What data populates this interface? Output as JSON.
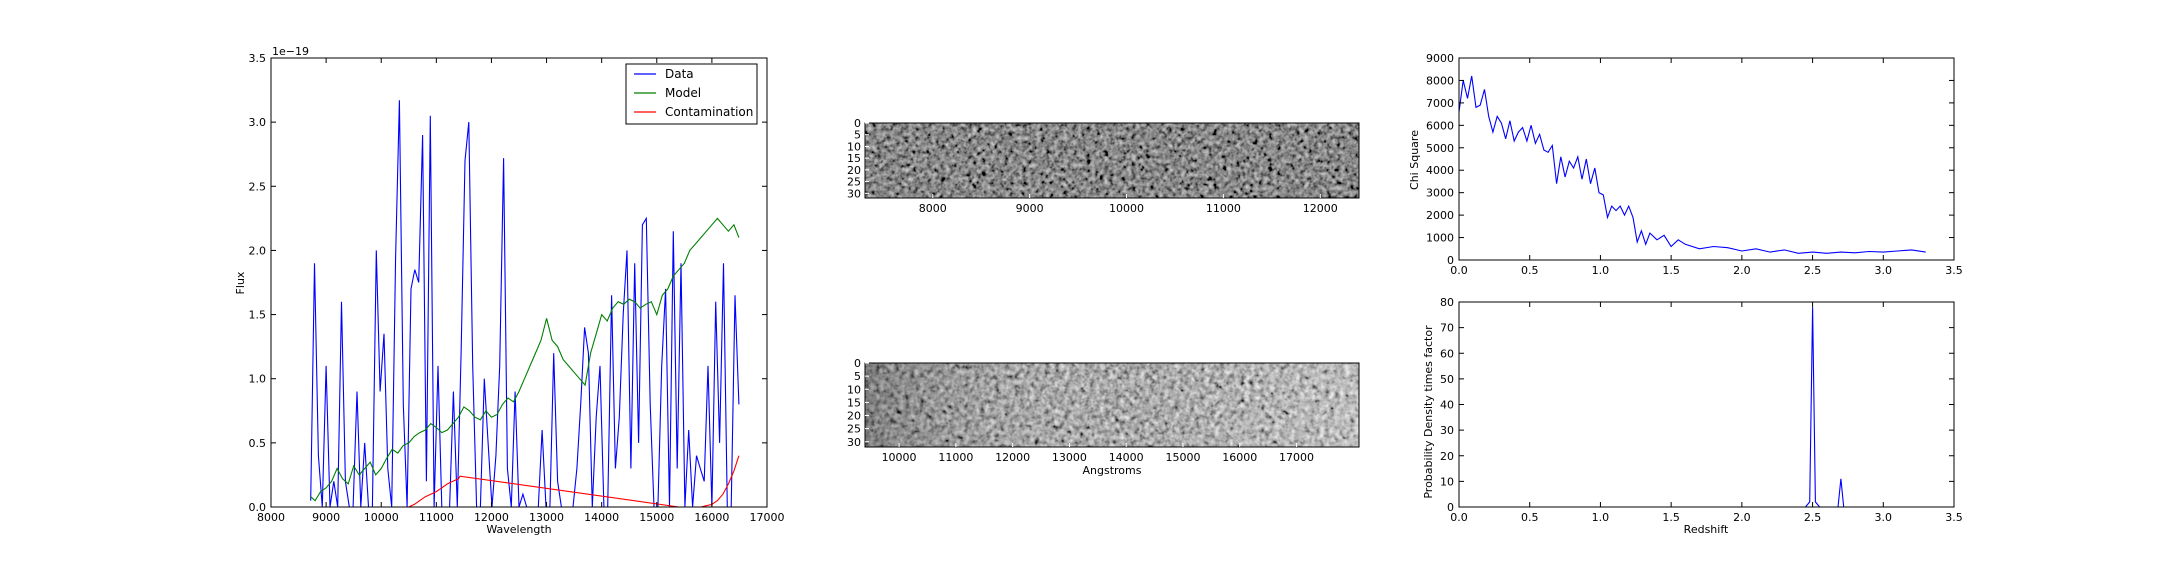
{
  "chart_data": [
    {
      "id": "spectrum",
      "type": "line",
      "title": "",
      "xlabel": "Wavelength",
      "ylabel": "Flux",
      "offset_text": "1e−19",
      "xlim": [
        8000,
        17000
      ],
      "ylim": [
        0,
        3.5
      ],
      "xticks": [
        8000,
        9000,
        10000,
        11000,
        12000,
        13000,
        14000,
        15000,
        16000,
        17000
      ],
      "yticks": [
        0.0,
        0.5,
        1.0,
        1.5,
        2.0,
        2.5,
        3.0,
        3.5
      ],
      "ytick_labels": [
        "0.0",
        "0.5",
        "1.0",
        "1.5",
        "2.0",
        "2.5",
        "3.0",
        "3.5"
      ],
      "legend": {
        "placement": "top-right",
        "entries": [
          "Data",
          "Model",
          "Contamination"
        ]
      },
      "series": [
        {
          "name": "Data",
          "color": "#0000ff",
          "x": [
            8720,
            8790,
            8860,
            8930,
            9000,
            9070,
            9140,
            9210,
            9280,
            9350,
            9420,
            9490,
            9560,
            9630,
            9700,
            9770,
            9840,
            9910,
            9980,
            10050,
            10120,
            10190,
            10260,
            10330,
            10400,
            10470,
            10540,
            10610,
            10680,
            10750,
            10820,
            10890,
            10960,
            11030,
            11100,
            11170,
            11240,
            11310,
            11380,
            11450,
            11520,
            11590,
            11660,
            11730,
            11800,
            11870,
            11940,
            12010,
            12080,
            12150,
            12220,
            12290,
            12360,
            12430,
            12500,
            12570,
            12640,
            12710,
            12780,
            12850,
            12920,
            12990,
            13060,
            13130,
            13200,
            13270,
            13340,
            13410,
            13480,
            13550,
            13620,
            13690,
            13760,
            13830,
            13900,
            13970,
            14040,
            14110,
            14180,
            14250,
            14320,
            14390,
            14460,
            14530,
            14600,
            14670,
            14740,
            14810,
            14880,
            14950,
            15020,
            15090,
            15160,
            15230,
            15300,
            15370,
            15440,
            15510,
            15580,
            15650,
            15720,
            15790,
            15860,
            15930,
            16000,
            16070,
            16140,
            16210,
            16280,
            16350,
            16420,
            16490
          ],
          "y": [
            0.05,
            1.9,
            0.4,
            0.0,
            1.1,
            0.0,
            0.2,
            0.0,
            1.6,
            0.2,
            0.0,
            0.0,
            0.9,
            0.0,
            0.5,
            0.0,
            0.0,
            2.0,
            0.9,
            1.35,
            0.3,
            0.0,
            1.95,
            3.17,
            0.8,
            0.0,
            1.7,
            1.85,
            1.75,
            2.9,
            0.2,
            3.05,
            0.0,
            1.1,
            0.0,
            0.0,
            0.0,
            0.9,
            0.0,
            1.2,
            2.7,
            3.0,
            1.1,
            0.0,
            0.0,
            1.0,
            0.5,
            0.0,
            0.4,
            1.1,
            2.72,
            0.3,
            0.0,
            0.9,
            0.0,
            0.1,
            0.0,
            0.0,
            0.0,
            0.0,
            0.6,
            0.0,
            0.0,
            1.2,
            0.2,
            0.0,
            0.0,
            0.0,
            0.0,
            0.3,
            0.8,
            1.4,
            1.2,
            0.0,
            0.7,
            1.1,
            0.0,
            0.0,
            1.65,
            0.3,
            0.7,
            1.5,
            2.0,
            0.3,
            1.9,
            0.5,
            2.2,
            2.25,
            0.8,
            0.0,
            0.0,
            1.1,
            1.7,
            0.0,
            2.15,
            0.3,
            1.9,
            0.0,
            0.6,
            0.0,
            0.4,
            0.3,
            0.2,
            1.1,
            0.0,
            1.6,
            0.5,
            1.9,
            0.0,
            0.0,
            1.65,
            0.8
          ]
        },
        {
          "name": "Model",
          "color": "#008000",
          "x": [
            8720,
            8800,
            8900,
            9000,
            9100,
            9200,
            9300,
            9400,
            9500,
            9600,
            9700,
            9800,
            9900,
            10000,
            10100,
            10200,
            10300,
            10400,
            10500,
            10600,
            10700,
            10800,
            10900,
            11000,
            11100,
            11200,
            11300,
            11400,
            11500,
            11600,
            11700,
            11800,
            11900,
            12000,
            12100,
            12200,
            12300,
            12400,
            12500,
            12600,
            12700,
            12800,
            12900,
            13000,
            13100,
            13200,
            13300,
            13400,
            13500,
            13600,
            13700,
            13800,
            13900,
            14000,
            14100,
            14200,
            14300,
            14400,
            14500,
            14600,
            14700,
            14800,
            14900,
            15000,
            15100,
            15200,
            15300,
            15400,
            15500,
            15600,
            15700,
            15800,
            15900,
            16000,
            16100,
            16200,
            16300,
            16400,
            16490
          ],
          "y": [
            0.08,
            0.05,
            0.12,
            0.15,
            0.2,
            0.3,
            0.22,
            0.18,
            0.32,
            0.25,
            0.3,
            0.35,
            0.25,
            0.3,
            0.38,
            0.45,
            0.42,
            0.48,
            0.5,
            0.55,
            0.58,
            0.6,
            0.65,
            0.62,
            0.58,
            0.6,
            0.65,
            0.7,
            0.78,
            0.75,
            0.7,
            0.68,
            0.75,
            0.7,
            0.72,
            0.8,
            0.85,
            0.82,
            0.9,
            1.0,
            1.1,
            1.2,
            1.3,
            1.47,
            1.3,
            1.25,
            1.15,
            1.1,
            1.05,
            1.0,
            0.95,
            1.2,
            1.35,
            1.5,
            1.45,
            1.55,
            1.6,
            1.58,
            1.62,
            1.6,
            1.55,
            1.58,
            1.6,
            1.5,
            1.65,
            1.7,
            1.8,
            1.85,
            1.9,
            2.0,
            2.05,
            2.1,
            2.15,
            2.2,
            2.25,
            2.2,
            2.15,
            2.2,
            2.1
          ]
        },
        {
          "name": "Contamination",
          "color": "#ff0000",
          "x": [
            10500,
            10600,
            10700,
            10800,
            10900,
            11000,
            11100,
            11200,
            11300,
            11400,
            11430,
            15400,
            15600,
            15800,
            15900,
            16000,
            16100,
            16200,
            16300,
            16400,
            16490
          ],
          "y": [
            0.0,
            0.02,
            0.05,
            0.08,
            0.1,
            0.12,
            0.15,
            0.18,
            0.2,
            0.22,
            0.24,
            0.0,
            0.0,
            0.0,
            0.01,
            0.02,
            0.05,
            0.1,
            0.18,
            0.28,
            0.4
          ]
        }
      ]
    },
    {
      "id": "image1",
      "type": "heatmap",
      "xticks": [
        8000,
        9000,
        10000,
        11000,
        12000
      ],
      "xlim": [
        7300,
        12400
      ],
      "yticks": [
        0,
        5,
        10,
        15,
        20,
        25,
        30
      ],
      "ylim": [
        0,
        32
      ],
      "colormap": "grayscale"
    },
    {
      "id": "image2",
      "type": "heatmap",
      "xlabel": "Angstroms",
      "xticks": [
        10000,
        11000,
        12000,
        13000,
        14000,
        15000,
        16000,
        17000
      ],
      "xlim": [
        9400,
        18100
      ],
      "yticks": [
        0,
        5,
        10,
        15,
        20,
        25,
        30
      ],
      "ylim": [
        0,
        32
      ],
      "colormap": "grayscale"
    },
    {
      "id": "chisq",
      "type": "line",
      "xlabel": "",
      "ylabel": "Chi Square",
      "xlim": [
        0.0,
        3.5
      ],
      "ylim": [
        0,
        9000
      ],
      "xticks": [
        0.0,
        0.5,
        1.0,
        1.5,
        2.0,
        2.5,
        3.0,
        3.5
      ],
      "xtick_labels": [
        "0.0",
        "0.5",
        "1.0",
        "1.5",
        "2.0",
        "2.5",
        "3.0",
        "3.5"
      ],
      "yticks": [
        0,
        1000,
        2000,
        3000,
        4000,
        5000,
        6000,
        7000,
        8000,
        9000
      ],
      "series": [
        {
          "name": "chi2",
          "color": "#0000ff",
          "x": [
            0.0,
            0.03,
            0.06,
            0.09,
            0.12,
            0.15,
            0.18,
            0.21,
            0.24,
            0.27,
            0.3,
            0.33,
            0.36,
            0.39,
            0.42,
            0.45,
            0.48,
            0.51,
            0.54,
            0.57,
            0.6,
            0.63,
            0.66,
            0.69,
            0.72,
            0.75,
            0.78,
            0.81,
            0.84,
            0.87,
            0.9,
            0.93,
            0.96,
            0.99,
            1.02,
            1.05,
            1.08,
            1.11,
            1.14,
            1.17,
            1.2,
            1.23,
            1.26,
            1.29,
            1.32,
            1.35,
            1.4,
            1.45,
            1.5,
            1.55,
            1.6,
            1.7,
            1.8,
            1.9,
            2.0,
            2.1,
            2.2,
            2.3,
            2.4,
            2.5,
            2.6,
            2.7,
            2.8,
            2.9,
            3.0,
            3.1,
            3.2,
            3.3
          ],
          "y": [
            6600,
            8000,
            7200,
            8200,
            6800,
            6900,
            7600,
            6400,
            5700,
            6400,
            6100,
            5400,
            6200,
            5300,
            5700,
            5900,
            5300,
            6000,
            5200,
            5600,
            4900,
            4800,
            5100,
            3400,
            4600,
            3700,
            4400,
            4100,
            4600,
            3600,
            4500,
            3400,
            4100,
            3000,
            2900,
            1900,
            2400,
            2200,
            2400,
            2000,
            2400,
            1900,
            800,
            1300,
            700,
            1200,
            900,
            1100,
            600,
            900,
            700,
            500,
            600,
            550,
            400,
            500,
            350,
            450,
            300,
            350,
            300,
            350,
            320,
            380,
            350,
            400,
            450,
            350
          ]
        }
      ]
    },
    {
      "id": "pdf",
      "type": "line",
      "xlabel": "Redshift",
      "ylabel": "Probability Density times factor",
      "xlim": [
        0.0,
        3.5
      ],
      "ylim": [
        0,
        80
      ],
      "xticks": [
        0.0,
        0.5,
        1.0,
        1.5,
        2.0,
        2.5,
        3.0,
        3.5
      ],
      "xtick_labels": [
        "0.0",
        "0.5",
        "1.0",
        "1.5",
        "2.0",
        "2.5",
        "3.0",
        "3.5"
      ],
      "yticks": [
        0,
        10,
        20,
        30,
        40,
        50,
        60,
        70,
        80
      ],
      "series": [
        {
          "name": "pdf",
          "color": "#0000ff",
          "x": [
            0.0,
            2.45,
            2.48,
            2.5,
            2.52,
            2.55,
            2.68,
            2.7,
            2.72,
            3.3
          ],
          "y": [
            0,
            0,
            2,
            78,
            2,
            0,
            0,
            11,
            0,
            0
          ]
        }
      ]
    }
  ]
}
